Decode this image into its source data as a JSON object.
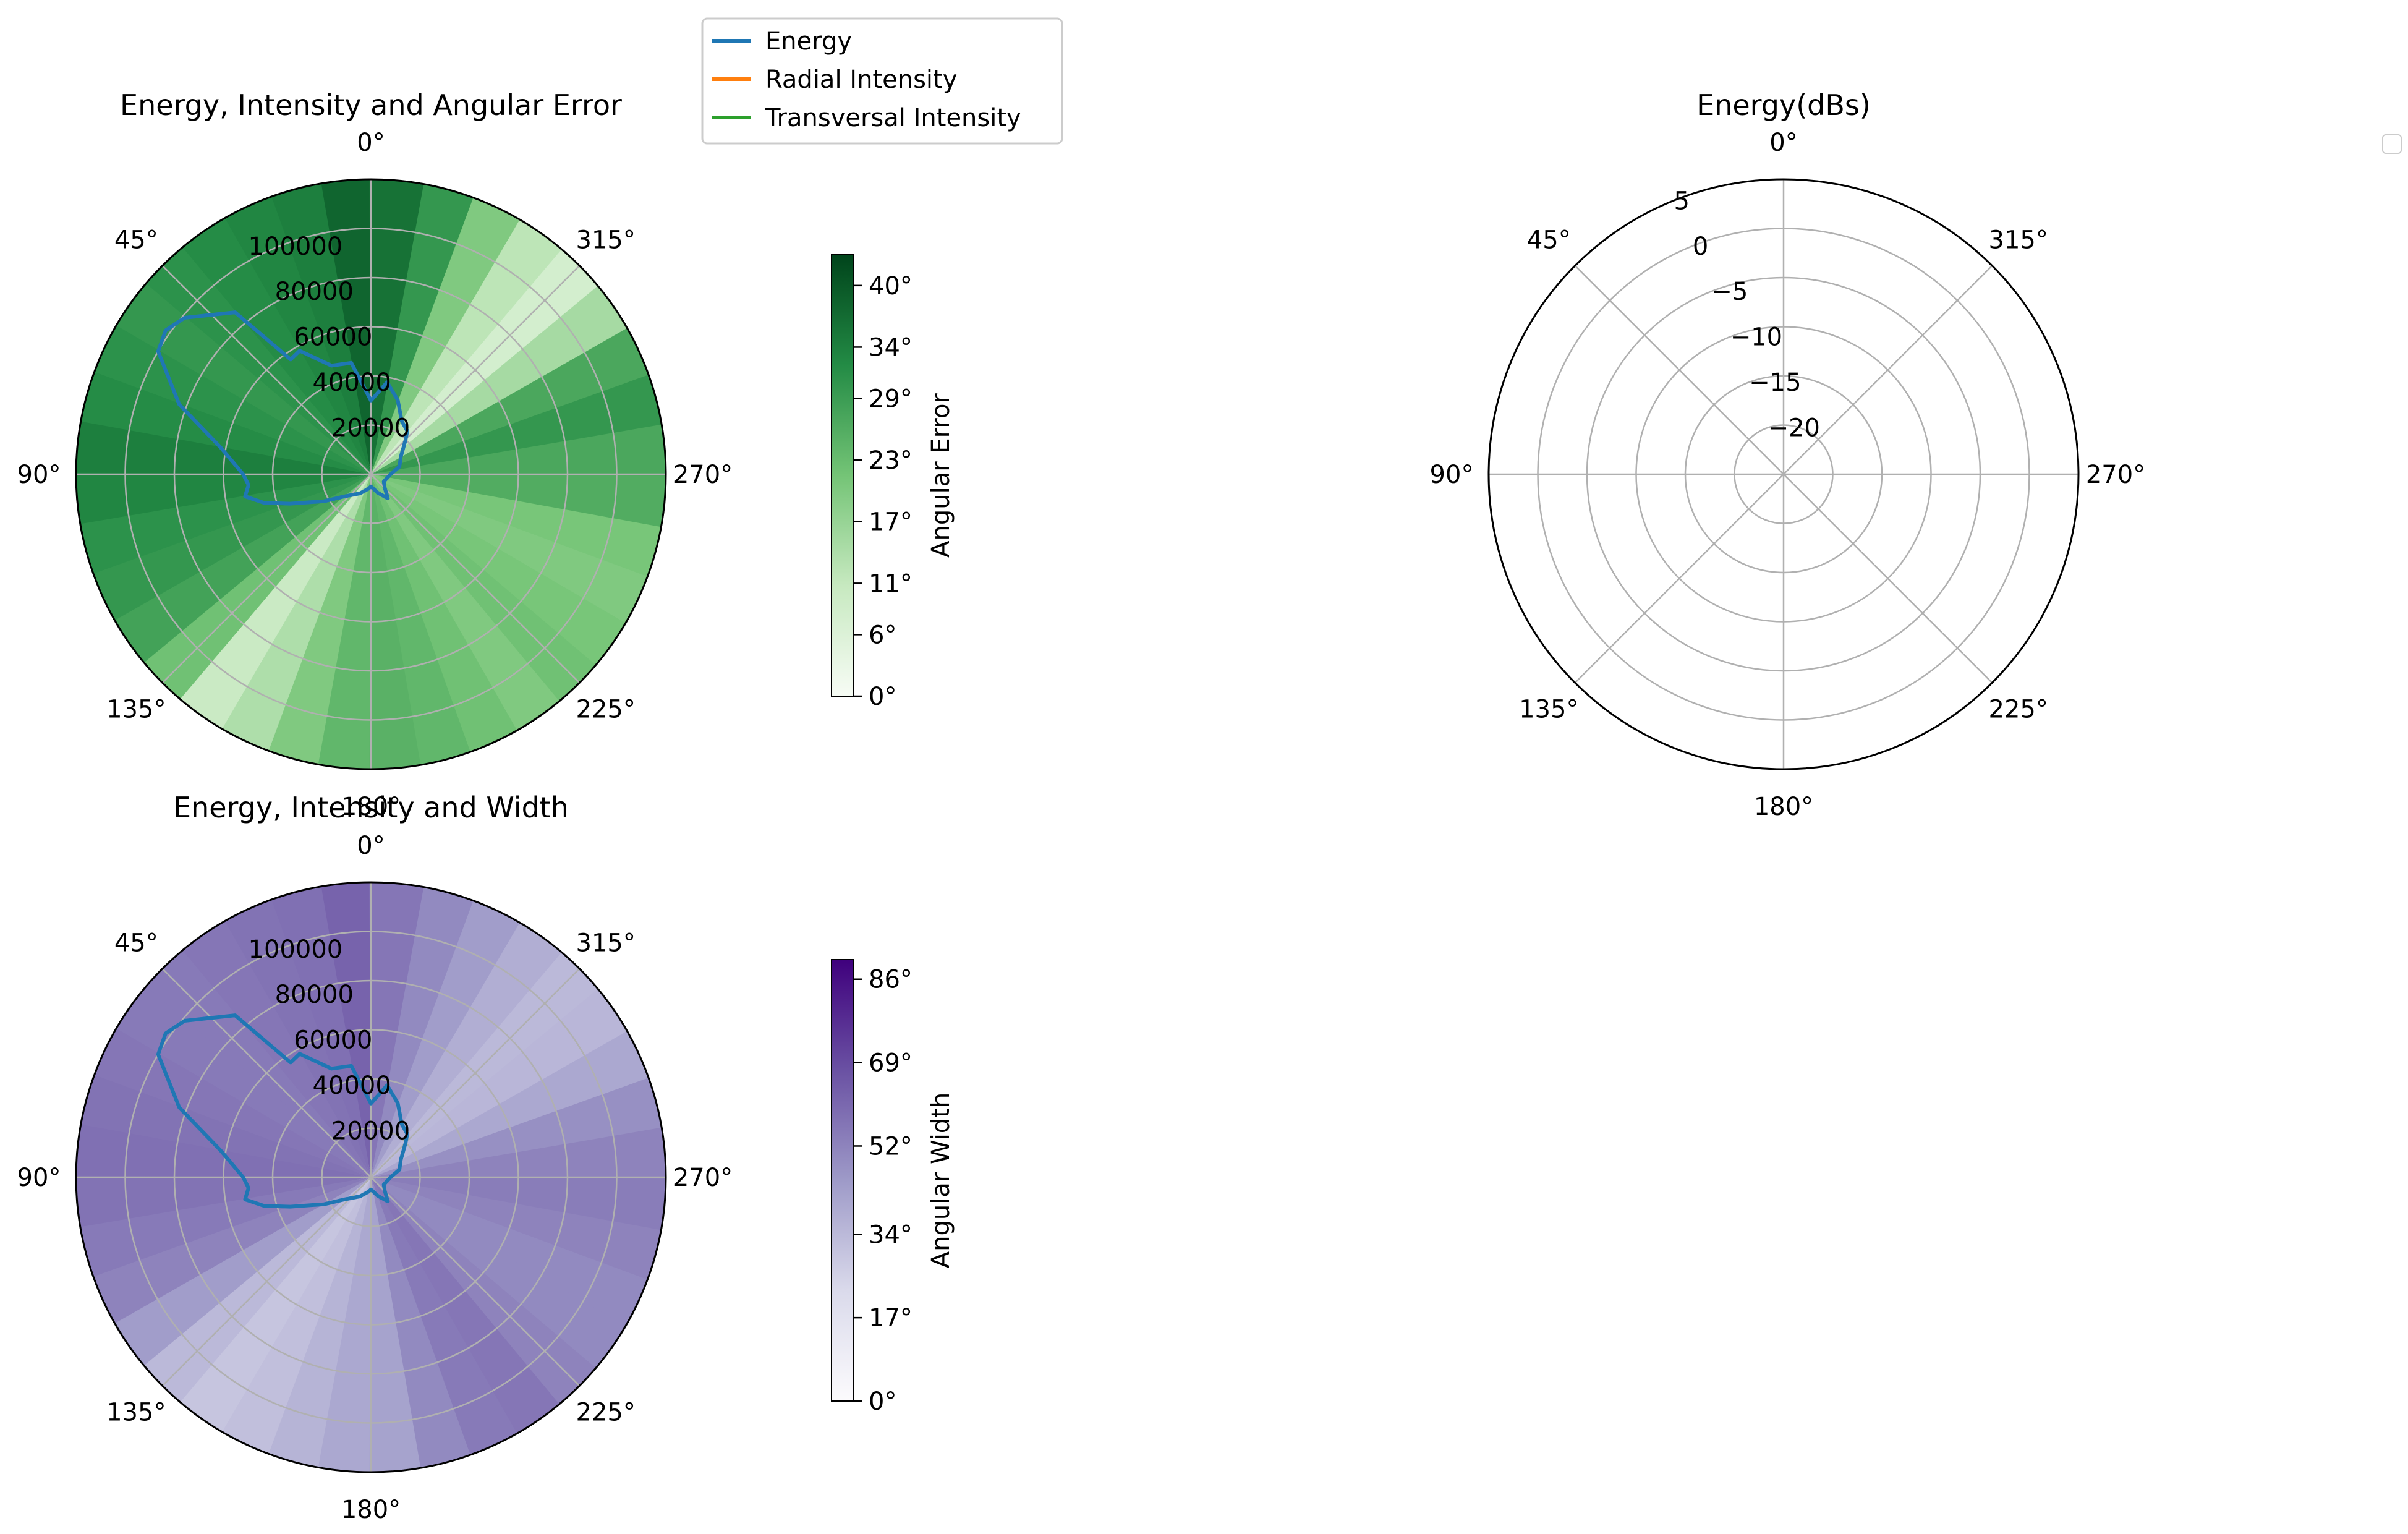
{
  "legend": {
    "entries": [
      {
        "label": "Energy",
        "color": "#1f77b4"
      },
      {
        "label": "Radial Intensity",
        "color": "#ff7f0e"
      },
      {
        "label": "Transversal Intensity",
        "color": "#2ca02c"
      }
    ]
  },
  "chart_data": [
    {
      "type": "polar-line-heatmap",
      "title": "Energy, Intensity and Angular Error",
      "angle_ticks": [
        "0°",
        "45°",
        "90°",
        "135°",
        "180°",
        "225°",
        "270°",
        "315°"
      ],
      "radial_ticks": [
        "20000",
        "40000",
        "60000",
        "80000",
        "100000"
      ],
      "r_range": [
        0,
        120000
      ],
      "series": [
        {
          "name": "Energy",
          "theta_deg": [
            0,
            10,
            20,
            30,
            35,
            40,
            50,
            55,
            60,
            70,
            80,
            90,
            95,
            100,
            105,
            110,
            120,
            130,
            150,
            170,
            180,
            190,
            200,
            215,
            225,
            240,
            260,
            270,
            285,
            300,
            315,
            320,
            330,
            335,
            340,
            350,
            360
          ],
          "r": [
            30000,
            46000,
            47000,
            58000,
            57000,
            86000,
            99000,
            102000,
            100000,
            83000,
            62000,
            52000,
            50000,
            52000,
            45000,
            35000,
            22000,
            14000,
            9000,
            6000,
            5000,
            6000,
            8000,
            12000,
            8000,
            6000,
            7000,
            8000,
            12000,
            14000,
            20000,
            23000,
            25000,
            28000,
            32000,
            38000,
            30000
          ]
        }
      ],
      "heatmap": {
        "colorbar_label": "Angular Error",
        "colorbar_ticks": [
          "0°",
          "6°",
          "11°",
          "17°",
          "23°",
          "29°",
          "34°",
          "40°"
        ],
        "range": [
          0,
          43
        ],
        "sectors_theta_deg": [
          0,
          10,
          20,
          30,
          40,
          50,
          60,
          70,
          80,
          90,
          100,
          110,
          120,
          130,
          140,
          150,
          160,
          170,
          180,
          190,
          200,
          210,
          220,
          230,
          240,
          250,
          260,
          270,
          280,
          290,
          300,
          310,
          320,
          330,
          340,
          350
        ],
        "values": [
          38,
          34,
          33,
          32,
          31,
          30,
          31,
          32,
          34,
          33,
          31,
          30,
          28,
          22,
          10,
          14,
          20,
          24,
          25,
          24,
          22,
          20,
          22,
          21,
          20,
          21,
          26,
          27,
          30,
          27,
          15,
          8,
          12,
          20,
          30,
          36
        ]
      }
    },
    {
      "type": "polar-line-heatmap",
      "title": "Energy, Intensity and Width",
      "angle_ticks": [
        "0°",
        "45°",
        "90°",
        "135°",
        "180°",
        "225°",
        "270°",
        "315°"
      ],
      "radial_ticks": [
        "20000",
        "40000",
        "60000",
        "80000",
        "100000"
      ],
      "r_range": [
        0,
        120000
      ],
      "series": [
        {
          "name": "Energy",
          "theta_deg": [
            0,
            10,
            20,
            30,
            35,
            40,
            50,
            55,
            60,
            70,
            80,
            90,
            95,
            100,
            105,
            110,
            120,
            130,
            150,
            170,
            180,
            190,
            200,
            215,
            225,
            240,
            260,
            270,
            285,
            300,
            315,
            320,
            330,
            335,
            340,
            350,
            360
          ],
          "r": [
            30000,
            46000,
            47000,
            58000,
            57000,
            86000,
            99000,
            102000,
            100000,
            83000,
            62000,
            52000,
            50000,
            52000,
            45000,
            35000,
            22000,
            14000,
            9000,
            6000,
            5000,
            6000,
            8000,
            12000,
            8000,
            6000,
            7000,
            8000,
            12000,
            14000,
            20000,
            23000,
            25000,
            28000,
            32000,
            38000,
            30000
          ]
        }
      ],
      "heatmap": {
        "colorbar_label": "Angular Width",
        "colorbar_ticks": [
          "0°",
          "17°",
          "34°",
          "52°",
          "69°",
          "86°"
        ],
        "range": [
          0,
          90
        ],
        "sectors_theta_deg": [
          0,
          10,
          20,
          30,
          40,
          50,
          60,
          70,
          80,
          90,
          100,
          110,
          120,
          130,
          140,
          150,
          160,
          170,
          180,
          190,
          200,
          210,
          220,
          230,
          240,
          250,
          260,
          270,
          280,
          290,
          300,
          310,
          320,
          330,
          340,
          350
        ],
        "values": [
          62,
          58,
          57,
          56,
          55,
          55,
          56,
          57,
          58,
          57,
          55,
          52,
          44,
          34,
          30,
          32,
          36,
          40,
          42,
          50,
          55,
          56,
          52,
          50,
          50,
          52,
          54,
          52,
          48,
          40,
          35,
          34,
          38,
          44,
          50,
          56
        ]
      }
    },
    {
      "type": "polar-line",
      "title": "Energy(dBs)",
      "angle_ticks": [
        "0°",
        "45°",
        "90°",
        "135°",
        "180°",
        "225°",
        "270°",
        "315°"
      ],
      "radial_ticks": [
        "−20",
        "−15",
        "−10",
        "−5",
        "0",
        "5"
      ],
      "r_range": [
        -25,
        5
      ],
      "series": []
    }
  ]
}
